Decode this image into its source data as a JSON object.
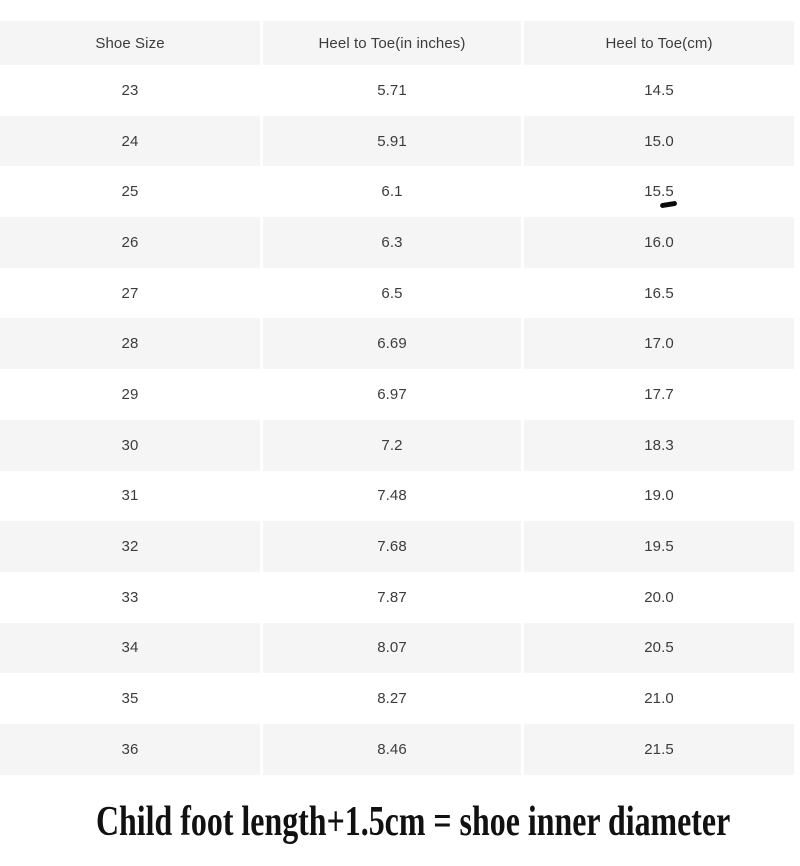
{
  "chart_data": {
    "type": "table",
    "title": "",
    "columns": [
      "Shoe Size",
      "Heel to Toe(in inches)",
      "Heel to Toe(cm)"
    ],
    "rows": [
      [
        "23",
        "5.71",
        "14.5"
      ],
      [
        "24",
        "5.91",
        "15.0"
      ],
      [
        "25",
        "6.1",
        "15.5"
      ],
      [
        "26",
        "6.3",
        "16.0"
      ],
      [
        "27",
        "6.5",
        "16.5"
      ],
      [
        "28",
        "6.69",
        "17.0"
      ],
      [
        "29",
        "6.97",
        "17.7"
      ],
      [
        "30",
        "7.2",
        "18.3"
      ],
      [
        "31",
        "7.48",
        "19.0"
      ],
      [
        "32",
        "7.68",
        "19.5"
      ],
      [
        "33",
        "7.87",
        "20.0"
      ],
      [
        "34",
        "8.07",
        "20.5"
      ],
      [
        "35",
        "8.27",
        "21.0"
      ],
      [
        "36",
        "8.46",
        "21.5"
      ]
    ],
    "layout": {
      "stripe_pattern": "header and even shoe sizes shaded",
      "legend": "none",
      "grid": "off"
    }
  },
  "annotation": {
    "pen_mark_under_value": "15.5",
    "pen_mark_row": "25",
    "pen_mark_column": "Heel to Toe(cm)"
  },
  "footer": {
    "note": "Child foot length+1.5cm = shoe inner diameter"
  },
  "colors": {
    "stripe": "#f5f5f5",
    "text": "#3c3c3c",
    "caption": "#111111",
    "background": "#ffffff"
  }
}
